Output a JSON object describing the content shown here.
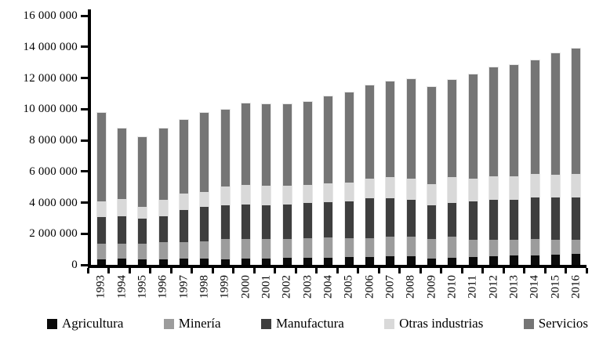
{
  "figure": {
    "background": "#ffffff",
    "axis_color": "#000000",
    "text_color": "#000000"
  },
  "chart_data": {
    "type": "bar",
    "stacked": true,
    "title": "",
    "xlabel": "",
    "ylabel": "",
    "grid": false,
    "legend_position": "bottom",
    "ylim": [
      0,
      16000000
    ],
    "ytick_step": 2000000,
    "ytick_labels": [
      "0",
      "2 000 000",
      "4 000 000",
      "6 000 000",
      "8 000 000",
      "10 000 000",
      "12 000 000",
      "14 000 000",
      "16 000 000"
    ],
    "categories": [
      "1993",
      "1994",
      "1995",
      "1996",
      "1997",
      "1998",
      "1999",
      "2000",
      "2001",
      "2002",
      "2003",
      "2004",
      "2005",
      "2006",
      "2007",
      "2008",
      "2009",
      "2010",
      "2011",
      "2012",
      "2013",
      "2014",
      "2015",
      "2016"
    ],
    "series": [
      {
        "name": "Agricultura",
        "color": "#0a0a0a",
        "values": [
          350000,
          380000,
          340000,
          360000,
          380000,
          400000,
          350000,
          390000,
          400000,
          440000,
          470000,
          470000,
          490000,
          520000,
          550000,
          570000,
          390000,
          440000,
          520000,
          550000,
          600000,
          600000,
          650000,
          720000
        ]
      },
      {
        "name": "Minería",
        "color": "#9c9c9c",
        "values": [
          990000,
          990000,
          1000000,
          1100000,
          1080000,
          1110000,
          1290000,
          1280000,
          1270000,
          1230000,
          1240000,
          1290000,
          1220000,
          1190000,
          1240000,
          1220000,
          1280000,
          1350000,
          1100000,
          1070000,
          1020000,
          1070000,
          970000,
          870000
        ]
      },
      {
        "name": "Manufactura",
        "color": "#3e3e3e",
        "values": [
          1710000,
          1730000,
          1630000,
          1670000,
          2060000,
          2210000,
          2210000,
          2180000,
          2180000,
          2220000,
          2260000,
          2290000,
          2390000,
          2560000,
          2510000,
          2400000,
          2130000,
          2180000,
          2480000,
          2570000,
          2570000,
          2680000,
          2730000,
          2760000
        ]
      },
      {
        "name": "Otras industrias",
        "color": "#d9d9d9",
        "values": [
          1020000,
          1120000,
          750000,
          1060000,
          1050000,
          970000,
          1180000,
          1290000,
          1210000,
          1170000,
          1140000,
          1180000,
          1180000,
          1260000,
          1340000,
          1370000,
          1390000,
          1670000,
          1430000,
          1510000,
          1510000,
          1510000,
          1460000,
          1510000
        ]
      },
      {
        "name": "Servicios",
        "color": "#757575",
        "values": [
          5690000,
          4550000,
          4460000,
          4580000,
          4730000,
          5070000,
          4940000,
          5250000,
          5250000,
          5250000,
          5360000,
          5610000,
          5780000,
          5980000,
          6140000,
          6350000,
          6250000,
          6250000,
          6680000,
          6980000,
          7150000,
          7290000,
          7760000,
          8040000
        ]
      }
    ]
  }
}
